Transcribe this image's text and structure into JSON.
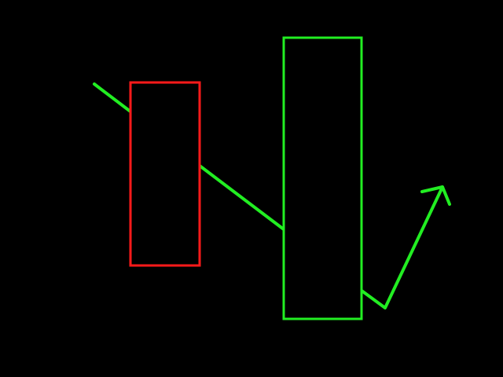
{
  "colors": {
    "background": "#000000",
    "red_box": "#ff1a1a",
    "green": "#22ee22"
  },
  "diagram": {
    "shapes": [
      {
        "name": "red-rectangle",
        "kind": "rectangle-outline",
        "color": "red"
      },
      {
        "name": "green-rectangle",
        "kind": "rectangle-outline",
        "color": "green"
      },
      {
        "name": "green-trend-line",
        "kind": "polyline-arrow",
        "color": "green",
        "direction": "down-then-up"
      }
    ]
  }
}
